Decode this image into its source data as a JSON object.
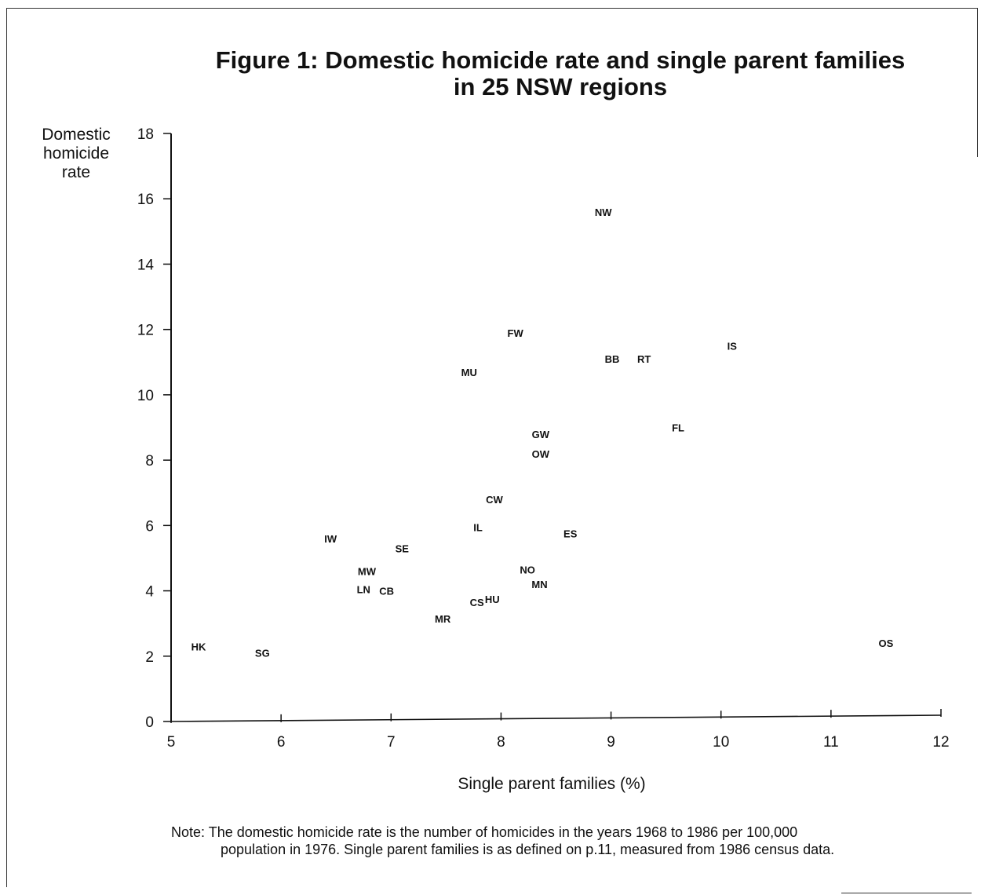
{
  "chart_data": {
    "type": "scatter",
    "title_lines": [
      "Figure 1:  Domestic homicide rate and single parent families",
      "in 25 NSW regions"
    ],
    "ylabel_lines": [
      "Domestic",
      "homicide",
      "rate"
    ],
    "xlabel": "Single parent families (%)",
    "xlim": [
      5,
      12
    ],
    "ylim": [
      0,
      18
    ],
    "xticks": [
      "5",
      "6",
      "7",
      "8",
      "9",
      "10",
      "11",
      "12"
    ],
    "yticks": [
      "0",
      "2",
      "4",
      "6",
      "8",
      "10",
      "12",
      "14",
      "16",
      "18"
    ],
    "grid": false,
    "legend": "none",
    "points": [
      {
        "label": "NW",
        "x": 8.93,
        "y": 15.6
      },
      {
        "label": "FW",
        "x": 8.13,
        "y": 11.9
      },
      {
        "label": "IS",
        "x": 10.1,
        "y": 11.5
      },
      {
        "label": "BB",
        "x": 9.01,
        "y": 11.1
      },
      {
        "label": "RT",
        "x": 9.3,
        "y": 11.1
      },
      {
        "label": "MU",
        "x": 7.71,
        "y": 10.7
      },
      {
        "label": "FL",
        "x": 9.61,
        "y": 9.0
      },
      {
        "label": "GW",
        "x": 8.36,
        "y": 8.8
      },
      {
        "label": "OW",
        "x": 8.36,
        "y": 8.2
      },
      {
        "label": "CW",
        "x": 7.94,
        "y": 6.8
      },
      {
        "label": "IL",
        "x": 7.79,
        "y": 5.95
      },
      {
        "label": "ES",
        "x": 8.63,
        "y": 5.75
      },
      {
        "label": "IW",
        "x": 6.45,
        "y": 5.6
      },
      {
        "label": "SE",
        "x": 7.1,
        "y": 5.3
      },
      {
        "label": "MW",
        "x": 6.78,
        "y": 4.6
      },
      {
        "label": "NO",
        "x": 8.24,
        "y": 4.65
      },
      {
        "label": "MN",
        "x": 8.35,
        "y": 4.2
      },
      {
        "label": "LN",
        "x": 6.75,
        "y": 4.05
      },
      {
        "label": "CB",
        "x": 6.96,
        "y": 4.0
      },
      {
        "label": "HU",
        "x": 7.92,
        "y": 3.75
      },
      {
        "label": "CS",
        "x": 7.78,
        "y": 3.65
      },
      {
        "label": "MR",
        "x": 7.47,
        "y": 3.15
      },
      {
        "label": "HK",
        "x": 5.25,
        "y": 2.3
      },
      {
        "label": "SG",
        "x": 5.83,
        "y": 2.1
      },
      {
        "label": "OS",
        "x": 11.5,
        "y": 2.4
      }
    ]
  },
  "note_lines": [
    "Note: The domestic homicide rate is the number of homicides in the years 1968 to 1986 per 100,000",
    "population in 1976.  Single parent families is as defined on p.11, measured from 1986 census data."
  ]
}
